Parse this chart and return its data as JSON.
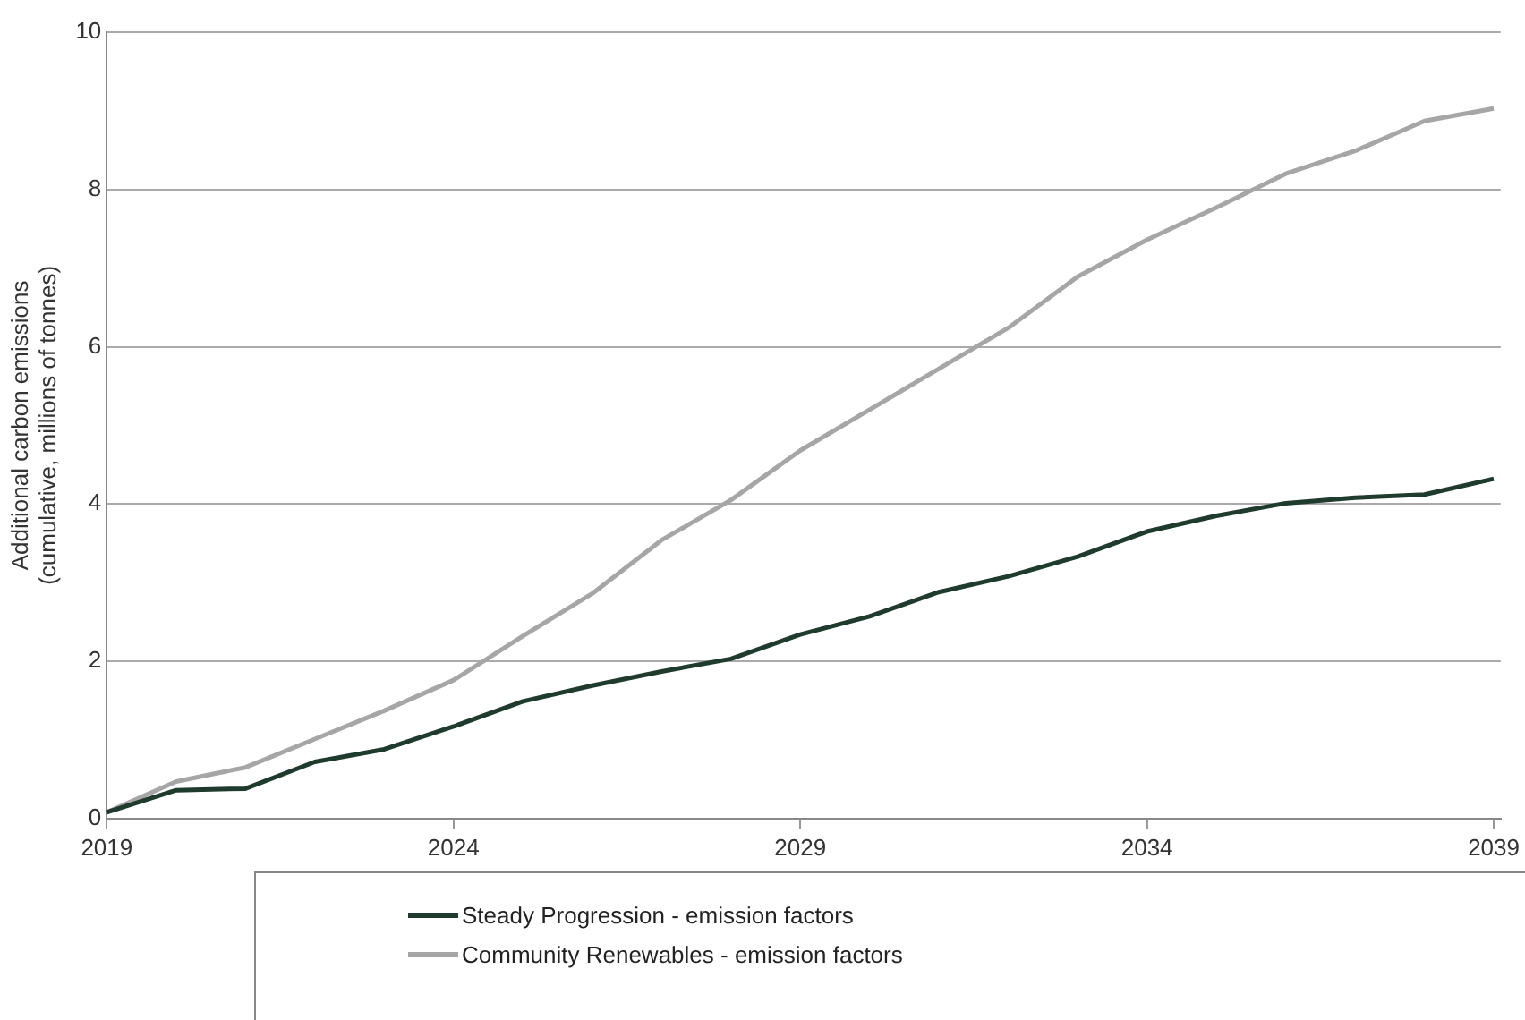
{
  "chart_data": {
    "type": "line",
    "ylabel": "Additional carbon emissions\n(cumulative, millions of tonnes)",
    "x": [
      2019,
      2020,
      2021,
      2022,
      2023,
      2024,
      2025,
      2026,
      2027,
      2028,
      2029,
      2030,
      2031,
      2032,
      2033,
      2034,
      2035,
      2036,
      2037,
      2038,
      2039
    ],
    "xlim": [
      2019,
      2039.1
    ],
    "xticks": [
      2019,
      2024,
      2029,
      2034,
      2039
    ],
    "ylim": [
      0,
      10
    ],
    "yticks": [
      0,
      2,
      4,
      6,
      8,
      10
    ],
    "series": [
      {
        "name": "Steady Progression - emission factors",
        "color": "#1e3b2e",
        "values": [
          0.08,
          0.36,
          0.38,
          0.72,
          0.88,
          1.17,
          1.49,
          1.69,
          1.87,
          2.03,
          2.34,
          2.57,
          2.88,
          3.08,
          3.33,
          3.65,
          3.85,
          4.01,
          4.08,
          4.12,
          4.32
        ]
      },
      {
        "name": "Community Renewables - emission factors",
        "color": "#a6a6a6",
        "values": [
          0.08,
          0.47,
          0.65,
          1.01,
          1.37,
          1.76,
          2.32,
          2.86,
          3.54,
          4.05,
          4.68,
          5.2,
          5.72,
          6.24,
          6.89,
          7.36,
          7.77,
          8.2,
          8.49,
          8.87,
          9.03
        ]
      }
    ],
    "grid": "y",
    "legend": "bottom",
    "marker": "none",
    "line_style": "solid"
  }
}
